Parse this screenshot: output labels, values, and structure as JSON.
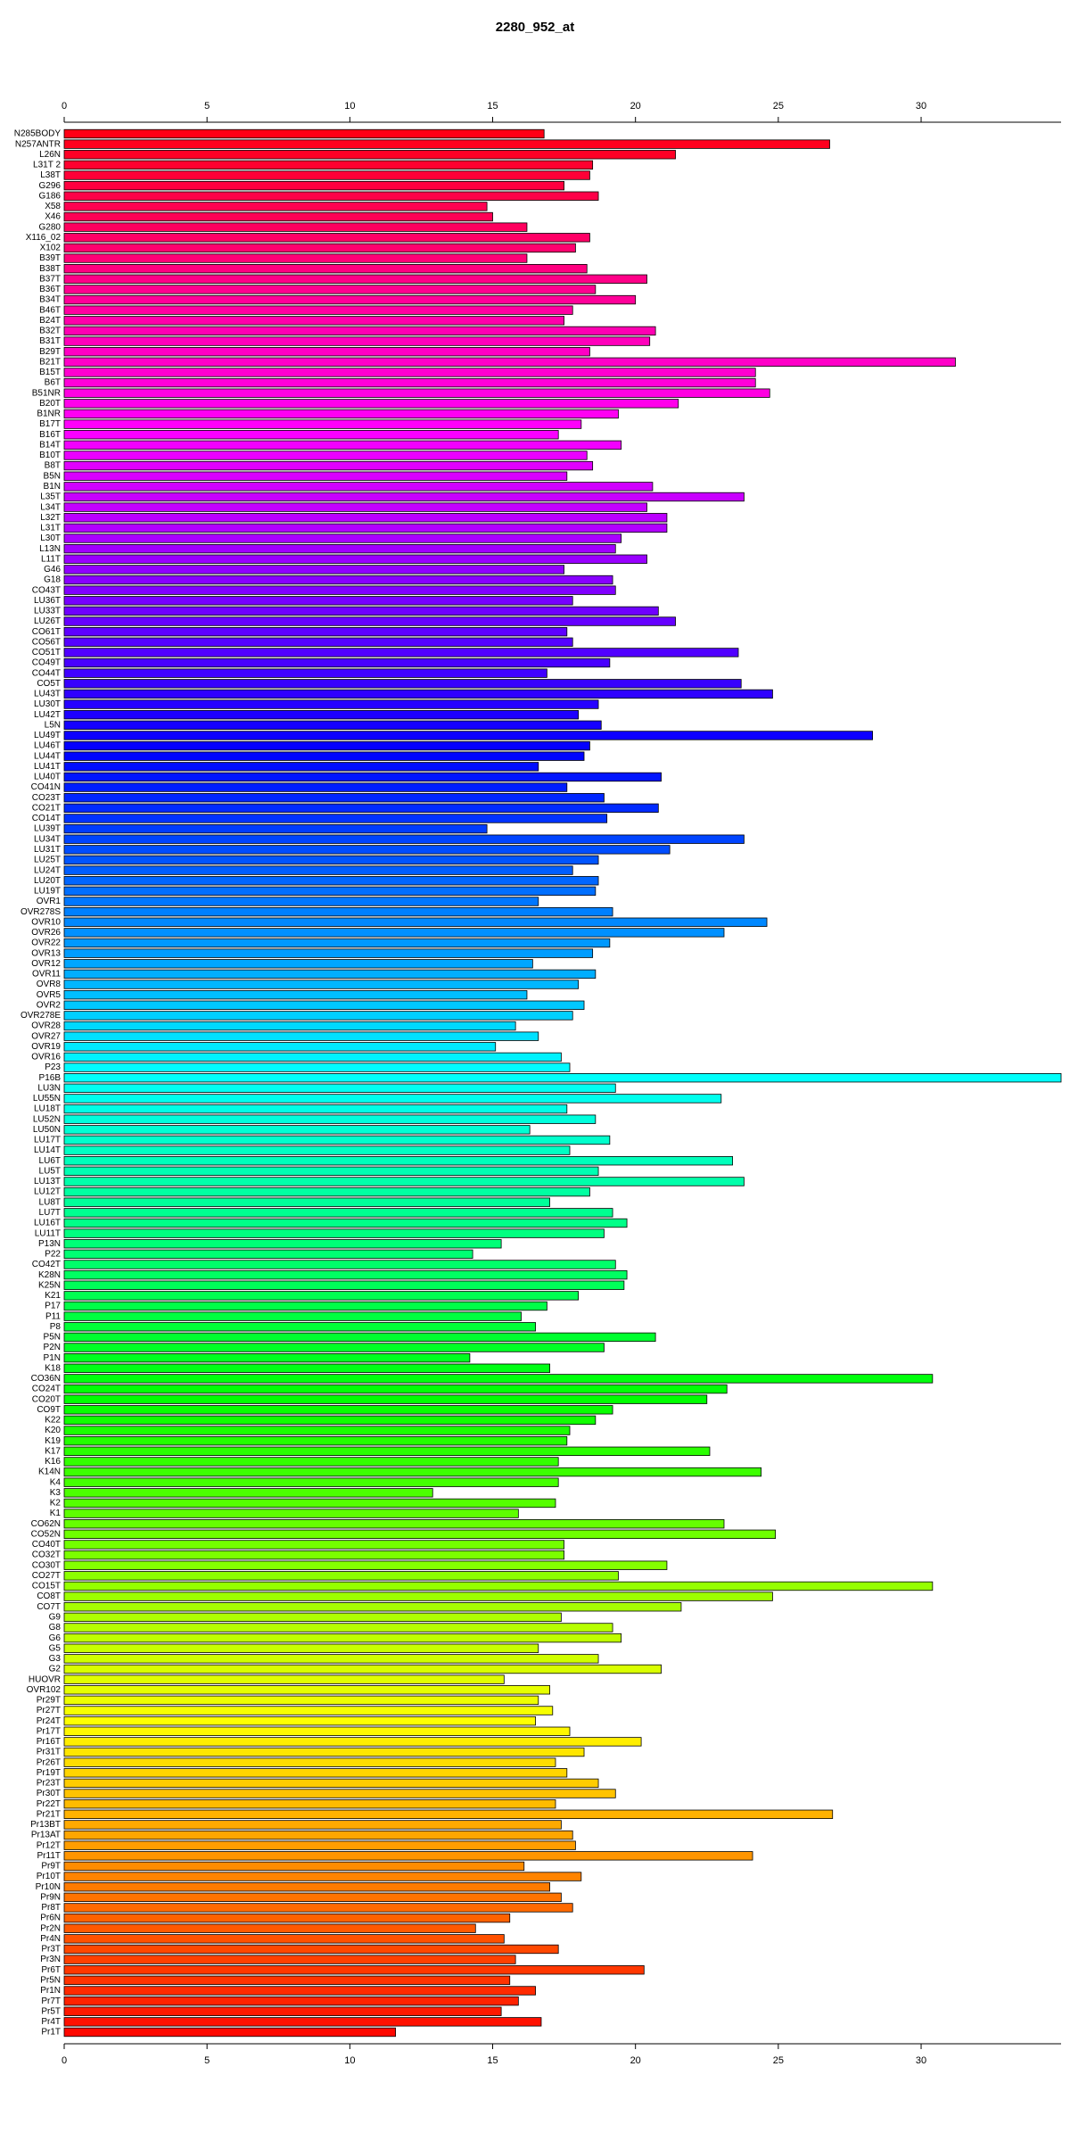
{
  "chart_data": {
    "type": "bar",
    "orientation": "horizontal",
    "title": "2280_952_at",
    "categories": [
      "N285BODY",
      "N257ANTR",
      "L26N",
      "L31T 2",
      "L38T",
      "G296",
      "G186",
      "X58",
      "X46",
      "G280",
      "X116_02",
      "X102",
      "B39T",
      "B38T",
      "B37T",
      "B36T",
      "B34T",
      "B46T",
      "B24T",
      "B32T",
      "B31T",
      "B29T",
      "B21T",
      "B15T",
      "B6T",
      "B51NR",
      "B20T",
      "B1NR",
      "B17T",
      "B16T",
      "B14T",
      "B10T",
      "B8T",
      "B5N",
      "B1N",
      "L35T",
      "L34T",
      "L32T",
      "L31T",
      "L30T",
      "L13N",
      "L11T",
      "G46",
      "G18",
      "CO43T",
      "LU36T",
      "LU33T",
      "LU26T",
      "CO61T",
      "CO56T",
      "CO51T",
      "CO49T",
      "CO44T",
      "CO5T",
      "LU43T",
      "LU30T",
      "LU42T",
      "L5N",
      "LU49T",
      "LU46T",
      "LU44T",
      "LU41T",
      "LU40T",
      "CO41N",
      "CO23T",
      "CO21T",
      "CO14T",
      "LU39T",
      "LU34T",
      "LU31T",
      "LU25T",
      "LU24T",
      "LU20T",
      "LU19T",
      "OVR1",
      "OVR278S",
      "OVR10",
      "OVR26",
      "OVR22",
      "OVR13",
      "OVR12",
      "OVR11",
      "OVR8",
      "OVR5",
      "OVR2",
      "OVR278E",
      "OVR28",
      "OVR27",
      "OVR19",
      "OVR16",
      "P23",
      "P16B",
      "LU3N",
      "LU55N",
      "LU18T",
      "LU52N",
      "LU50N",
      "LU17T",
      "LU14T",
      "LU6T",
      "LU5T",
      "LU13T",
      "LU12T",
      "LU8T",
      "LU7T",
      "LU16T",
      "LU11T",
      "P13N",
      "P22",
      "CO42T",
      "K28N",
      "K25N",
      "K21",
      "P17",
      "P11",
      "P8",
      "P5N",
      "P2N",
      "P1N",
      "K18",
      "CO36N",
      "CO24T",
      "CO20T",
      "CO9T",
      "K22",
      "K20",
      "K19",
      "K17",
      "K16",
      "K14N",
      "K4",
      "K3",
      "K2",
      "K1",
      "CO62N",
      "CO52N",
      "CO40T",
      "CO32T",
      "CO30T",
      "CO27T",
      "CO15T",
      "CO8T",
      "CO7T",
      "G9",
      "G8",
      "G6",
      "G5",
      "G3",
      "G2",
      "HUOVR",
      "OVR102",
      "Pr29T",
      "Pr27T",
      "Pr24T",
      "Pr17T",
      "Pr16T",
      "Pr31T",
      "Pr26T",
      "Pr19T",
      "Pr23T",
      "Pr30T",
      "Pr22T",
      "Pr21T",
      "Pr13BT",
      "Pr13AT",
      "Pr12T",
      "Pr11T",
      "Pr9T",
      "Pr10T",
      "Pr10N",
      "Pr9N",
      "Pr8T",
      "Pr6N",
      "Pr2N",
      "Pr4N",
      "Pr3T",
      "Pr3N",
      "Pr6T",
      "Pr5N",
      "Pr1N",
      "Pr7T",
      "Pr5T",
      "Pr4T",
      "Pr1T"
    ],
    "values": [
      16.8,
      26.8,
      21.4,
      18.5,
      18.4,
      17.5,
      18.7,
      14.8,
      15.0,
      16.2,
      18.4,
      17.9,
      16.2,
      18.3,
      20.4,
      18.6,
      20.0,
      17.8,
      17.5,
      20.7,
      20.5,
      18.4,
      31.2,
      24.2,
      24.2,
      24.7,
      21.5,
      19.4,
      18.1,
      17.3,
      19.5,
      18.3,
      18.5,
      17.6,
      20.6,
      23.8,
      20.4,
      21.1,
      21.1,
      19.5,
      19.3,
      20.4,
      17.5,
      19.2,
      19.3,
      17.8,
      20.8,
      21.4,
      17.6,
      17.8,
      23.6,
      19.1,
      16.9,
      23.7,
      24.8,
      18.7,
      18.0,
      18.8,
      28.3,
      18.4,
      18.2,
      16.6,
      20.9,
      17.6,
      18.9,
      20.8,
      19.0,
      14.8,
      23.8,
      21.2,
      18.7,
      17.8,
      18.7,
      18.6,
      16.6,
      19.2,
      24.6,
      23.1,
      19.1,
      18.5,
      16.4,
      18.6,
      18.0,
      16.2,
      18.2,
      17.8,
      15.8,
      16.6,
      15.1,
      17.4,
      17.7,
      34.9,
      19.3,
      23.0,
      17.6,
      18.6,
      16.3,
      19.1,
      17.7,
      23.4,
      18.7,
      23.8,
      18.4,
      17.0,
      19.2,
      19.7,
      18.9,
      15.3,
      14.3,
      19.3,
      19.7,
      19.6,
      18.0,
      16.9,
      16.0,
      16.5,
      20.7,
      18.9,
      14.2,
      17.0,
      30.4,
      23.2,
      22.5,
      19.2,
      18.6,
      17.7,
      17.6,
      22.6,
      17.3,
      24.4,
      17.3,
      12.9,
      17.2,
      15.9,
      23.1,
      24.9,
      17.5,
      17.5,
      21.1,
      19.4,
      30.4,
      24.8,
      21.6,
      17.4,
      19.2,
      19.5,
      16.6,
      18.7,
      20.9,
      15.4,
      17.0,
      16.6,
      17.1,
      16.5,
      17.7,
      20.2,
      18.2,
      17.2,
      17.6,
      18.7,
      19.3,
      17.2,
      26.9,
      17.4,
      17.8,
      17.9,
      24.1,
      16.1,
      18.1,
      17.0,
      17.4,
      17.8,
      15.6,
      14.4,
      15.4,
      17.3,
      15.8,
      20.3,
      15.6,
      16.5,
      15.9,
      15.3,
      16.7,
      11.6
    ],
    "colors": [
      "hsl(355,100%,50%)",
      "hsl(353,100%,50%)",
      "hsl(351,100%,50%)",
      "hsl(349,100%,50%)",
      "hsl(347,100%,50%)",
      "hsl(345,100%,50%)",
      "hsl(343,100%,50%)",
      "hsl(341,100%,50%)",
      "hsl(340,100%,50%)",
      "hsl(338,100%,50%)",
      "hsl(336,100%,50%)",
      "hsl(334,100%,50%)",
      "hsl(332,100%,50%)",
      "hsl(330,100%,50%)",
      "hsl(328,100%,50%)",
      "hsl(326,100%,50%)",
      "hsl(324,100%,50%)",
      "hsl(322,100%,50%)",
      "hsl(320,100%,50%)",
      "hsl(318,100%,50%)",
      "hsl(316,100%,50%)",
      "hsl(314,100%,50%)",
      "hsl(313,100%,50%)",
      "hsl(311,100%,50%)",
      "hsl(309,100%,50%)",
      "hsl(307,100%,50%)",
      "hsl(305,100%,50%)",
      "hsl(303,100%,50%)",
      "hsl(301,100%,50%)",
      "hsl(299,100%,50%)",
      "hsl(297,100%,50%)",
      "hsl(295,100%,50%)",
      "hsl(293,100%,50%)",
      "hsl(291,100%,50%)",
      "hsl(289,100%,50%)",
      "hsl(287,100%,50%)",
      "hsl(286,100%,50%)",
      "hsl(284,100%,50%)",
      "hsl(282,100%,50%)",
      "hsl(280,100%,50%)",
      "hsl(278,100%,50%)",
      "hsl(276,100%,50%)",
      "hsl(274,100%,50%)",
      "hsl(272,100%,50%)",
      "hsl(270,100%,50%)",
      "hsl(268,100%,50%)",
      "hsl(266,100%,50%)",
      "hsl(264,100%,50%)",
      "hsl(262,100%,50%)",
      "hsl(260,100%,50%)",
      "hsl(259,100%,50%)",
      "hsl(257,100%,50%)",
      "hsl(255,100%,50%)",
      "hsl(253,100%,50%)",
      "hsl(251,100%,50%)",
      "hsl(249,100%,50%)",
      "hsl(247,100%,50%)",
      "hsl(245,100%,50%)",
      "hsl(243,100%,50%)",
      "hsl(241,100%,50%)",
      "hsl(239,100%,50%)",
      "hsl(237,100%,50%)",
      "hsl(235,100%,50%)",
      "hsl(233,100%,50%)",
      "hsl(231,100%,50%)",
      "hsl(230,100%,50%)",
      "hsl(228,100%,50%)",
      "hsl(226,100%,50%)",
      "hsl(224,100%,50%)",
      "hsl(222,100%,50%)",
      "hsl(220,100%,50%)",
      "hsl(218,100%,50%)",
      "hsl(216,100%,50%)",
      "hsl(214,100%,50%)",
      "hsl(212,100%,50%)",
      "hsl(210,100%,50%)",
      "hsl(208,100%,50%)",
      "hsl(206,100%,50%)",
      "hsl(204,100%,50%)",
      "hsl(203,100%,50%)",
      "hsl(201,100%,50%)",
      "hsl(199,100%,50%)",
      "hsl(197,100%,50%)",
      "hsl(195,100%,50%)",
      "hsl(193,100%,50%)",
      "hsl(191,100%,50%)",
      "hsl(189,100%,50%)",
      "hsl(187,100%,50%)",
      "hsl(185,100%,50%)",
      "hsl(183,100%,50%)",
      "hsl(181,100%,50%)",
      "hsl(179,100%,50%)",
      "hsl(177,100%,50%)",
      "hsl(176,100%,50%)",
      "hsl(174,100%,50%)",
      "hsl(172,100%,50%)",
      "hsl(170,100%,50%)",
      "hsl(168,100%,50%)",
      "hsl(166,100%,50%)",
      "hsl(164,100%,50%)",
      "hsl(162,100%,50%)",
      "hsl(160,100%,50%)",
      "hsl(158,100%,50%)",
      "hsl(156,100%,50%)",
      "hsl(154,100%,50%)",
      "hsl(152,100%,50%)",
      "hsl(150,100%,50%)",
      "hsl(148,100%,50%)",
      "hsl(147,100%,50%)",
      "hsl(145,100%,50%)",
      "hsl(143,100%,50%)",
      "hsl(141,100%,50%)",
      "hsl(139,100%,50%)",
      "hsl(137,100%,50%)",
      "hsl(135,100%,50%)",
      "hsl(133,100%,50%)",
      "hsl(131,100%,50%)",
      "hsl(129,100%,50%)",
      "hsl(127,100%,50%)",
      "hsl(125,100%,50%)",
      "hsl(123,100%,50%)",
      "hsl(121,100%,50%)",
      "hsl(120,100%,50%)",
      "hsl(118,100%,50%)",
      "hsl(116,100%,50%)",
      "hsl(114,100%,50%)",
      "hsl(112,100%,50%)",
      "hsl(110,100%,50%)",
      "hsl(108,100%,50%)",
      "hsl(106,100%,50%)",
      "hsl(104,100%,50%)",
      "hsl(102,100%,50%)",
      "hsl(100,100%,50%)",
      "hsl(98,100%,50%)",
      "hsl(96,100%,50%)",
      "hsl(94,100%,50%)",
      "hsl(93,100%,50%)",
      "hsl(91,100%,50%)",
      "hsl(89,100%,50%)",
      "hsl(87,100%,50%)",
      "hsl(85,100%,50%)",
      "hsl(83,100%,50%)",
      "hsl(81,100%,50%)",
      "hsl(79,100%,50%)",
      "hsl(77,100%,50%)",
      "hsl(75,100%,50%)",
      "hsl(73,100%,50%)",
      "hsl(71,100%,50%)",
      "hsl(69,100%,50%)",
      "hsl(67,100%,50%)",
      "hsl(66,100%,50%)",
      "hsl(64,100%,50%)",
      "hsl(62,100%,50%)",
      "hsl(60,100%,50%)",
      "hsl(58,100%,50%)",
      "hsl(56,100%,50%)",
      "hsl(54,100%,50%)",
      "hsl(52,100%,50%)",
      "hsl(50,100%,50%)",
      "hsl(48,100%,50%)",
      "hsl(46,100%,50%)",
      "hsl(44,100%,50%)",
      "hsl(42,100%,50%)",
      "hsl(40,100%,50%)",
      "hsl(39,100%,50%)",
      "hsl(37,100%,50%)",
      "hsl(35,100%,50%)",
      "hsl(33,100%,50%)",
      "hsl(31,100%,50%)",
      "hsl(29,100%,50%)",
      "hsl(27,100%,50%)",
      "hsl(25,100%,50%)",
      "hsl(23,100%,50%)",
      "hsl(21,100%,50%)",
      "hsl(19,100%,50%)",
      "hsl(17,100%,50%)",
      "hsl(15,100%,50%)",
      "hsl(13,100%,50%)",
      "hsl(12,100%,50%)",
      "hsl(10,100%,50%)",
      "hsl(8,100%,50%)",
      "hsl(6,100%,50%)",
      "hsl(4,100%,50%)",
      "hsl(2,100%,50%)"
    ],
    "xlim": [
      0,
      34.9
    ],
    "xticks": [
      0,
      5,
      10,
      15,
      20,
      25,
      30
    ],
    "grid": false
  }
}
